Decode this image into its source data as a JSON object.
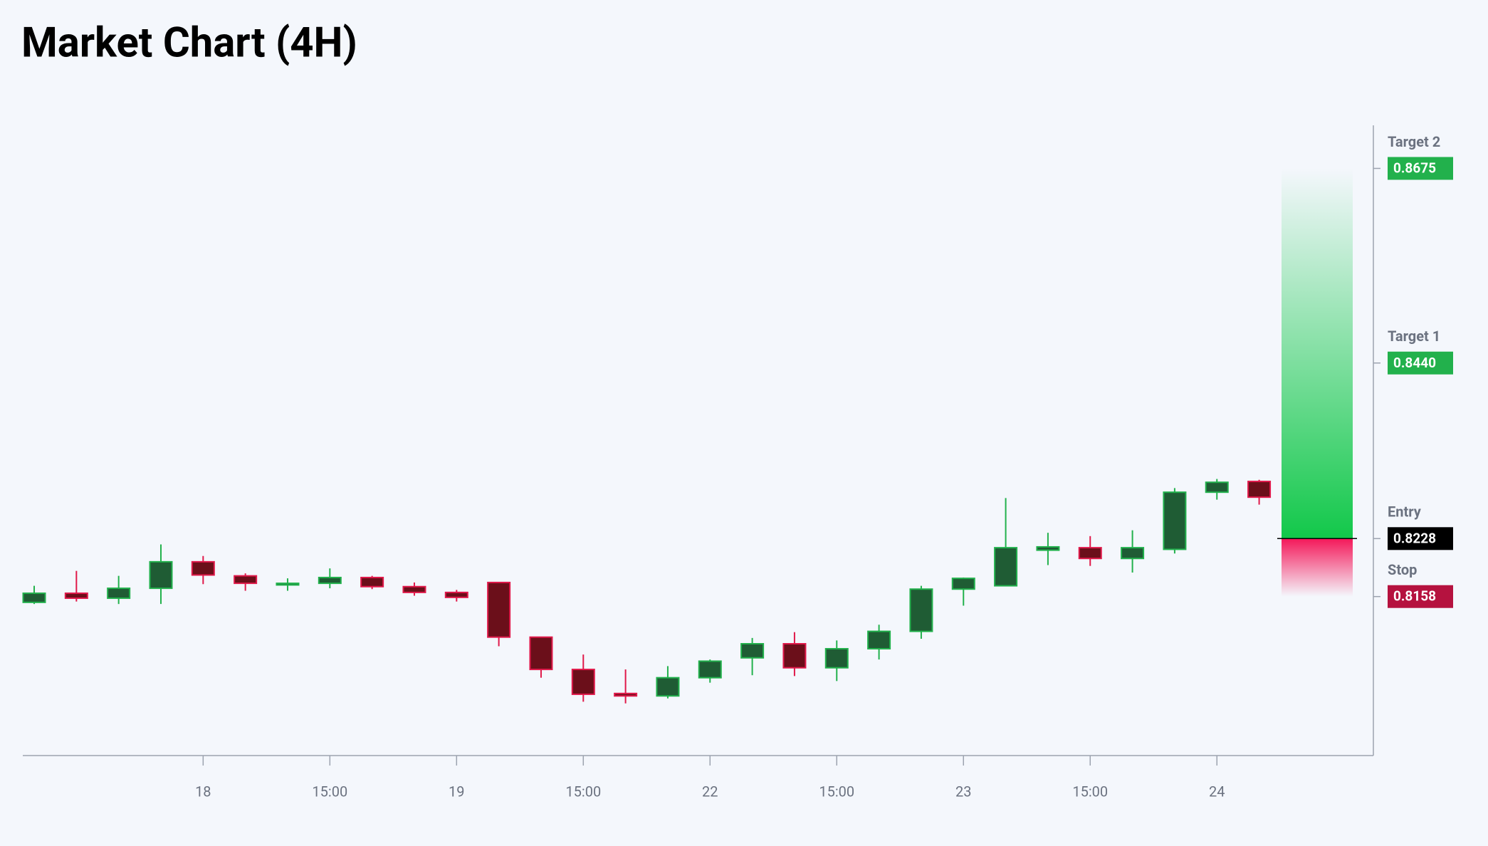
{
  "chart_data": {
    "type": "candlestick",
    "title": "Market Chart (4H)",
    "categories": [
      null,
      null,
      null,
      null,
      "18",
      null,
      null,
      "15:00",
      null,
      null,
      "19",
      null,
      null,
      "15:00",
      null,
      null,
      "22",
      null,
      null,
      "15:00",
      null,
      null,
      "23",
      null,
      null,
      "15:00",
      null,
      null,
      "24",
      null
    ],
    "open": [
      0.8151,
      0.8162,
      0.8156,
      0.8168,
      0.82,
      0.8183,
      0.8172,
      0.8174,
      0.8181,
      0.817,
      0.8163,
      0.8175,
      0.8109,
      0.807,
      0.8041,
      0.8038,
      0.806,
      0.8084,
      0.8101,
      0.8072,
      0.8095,
      0.8116,
      0.8167,
      0.8171,
      0.8214,
      0.8217,
      0.8204,
      0.8215,
      0.8284,
      0.8297
    ],
    "high": [
      0.8171,
      0.8189,
      0.8183,
      0.8221,
      0.8207,
      0.8186,
      0.818,
      0.8192,
      0.8183,
      0.8175,
      0.8166,
      0.8175,
      0.8109,
      0.8088,
      0.807,
      0.8074,
      0.8082,
      0.8108,
      0.8115,
      0.8105,
      0.8124,
      0.8171,
      0.8181,
      0.8277,
      0.8235,
      0.8231,
      0.8238,
      0.8289,
      0.83,
      0.8299
    ],
    "low": [
      0.8149,
      0.8152,
      0.8149,
      0.8149,
      0.8173,
      0.8165,
      0.8165,
      0.8168,
      0.8167,
      0.8159,
      0.8152,
      0.8098,
      0.806,
      0.8031,
      0.8029,
      0.8035,
      0.8054,
      0.8063,
      0.8062,
      0.8056,
      0.8082,
      0.8107,
      0.8147,
      0.8171,
      0.8196,
      0.8195,
      0.8187,
      0.821,
      0.8275,
      0.8269
    ],
    "close": [
      0.8162,
      0.8156,
      0.8168,
      0.82,
      0.8184,
      0.8174,
      0.8174,
      0.8181,
      0.817,
      0.8163,
      0.8157,
      0.8109,
      0.807,
      0.804,
      0.8038,
      0.806,
      0.808,
      0.8101,
      0.8072,
      0.8095,
      0.8116,
      0.8167,
      0.818,
      0.8217,
      0.8218,
      0.8204,
      0.8217,
      0.8284,
      0.8296,
      0.8278
    ],
    "up_color": "#22b14c",
    "up_fill": "#1f5c34",
    "down_color": "#e0194a",
    "down_fill": "#6b0f1a",
    "ylim": [
      0.7966,
      0.8727
    ],
    "levels": [
      {
        "name": "Target 2",
        "value": 0.8675,
        "value_label": "0.8675",
        "color": "#22b14c"
      },
      {
        "name": "Target 1",
        "value": 0.844,
        "value_label": "0.8440",
        "color": "#22b14c"
      },
      {
        "name": "Entry",
        "value": 0.8228,
        "value_label": "0.8228",
        "color": "#000000"
      },
      {
        "name": "Stop",
        "value": 0.8158,
        "value_label": "0.8158",
        "color": "#b5123f"
      }
    ]
  }
}
